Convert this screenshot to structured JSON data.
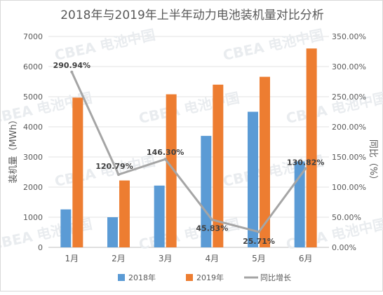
{
  "chart_data": {
    "type": "bar",
    "title": "2018年与2019年上半年动力电池装机量对比分析",
    "categories": [
      "1月",
      "2月",
      "3月",
      "4月",
      "5月",
      "6月"
    ],
    "series": [
      {
        "name": "2018年",
        "type": "bar",
        "axis": "left",
        "color": "#5b9bd5",
        "values": [
          1260,
          1000,
          2050,
          3700,
          4500,
          2850
        ]
      },
      {
        "name": "2019年",
        "type": "bar",
        "axis": "left",
        "color": "#ed7d31",
        "values": [
          4970,
          2220,
          5080,
          5400,
          5660,
          6600
        ]
      },
      {
        "name": "同比增长",
        "type": "line",
        "axis": "right",
        "color": "#a5a5a5",
        "values": [
          290.94,
          120.79,
          146.3,
          45.83,
          25.71,
          130.82
        ]
      }
    ],
    "data_labels": [
      "290.94%",
      "120.79%",
      "146.30%",
      "45.83%",
      "25.71%",
      "130.82%"
    ],
    "ylabel": "装机量（MWh）",
    "y2label": "同比（%）",
    "ylim": [
      0,
      7000
    ],
    "y2lim": [
      0,
      350
    ],
    "yticks": [
      "0",
      "1000",
      "2000",
      "3000",
      "4000",
      "5000",
      "6000",
      "7000"
    ],
    "y2ticks": [
      "0.00%",
      "50.00%",
      "100.00%",
      "150.00%",
      "200.00%",
      "250.00%",
      "300.00%",
      "350.00%"
    ],
    "grid": true,
    "legend_position": "bottom"
  },
  "watermark": "CBEA 电池中国"
}
